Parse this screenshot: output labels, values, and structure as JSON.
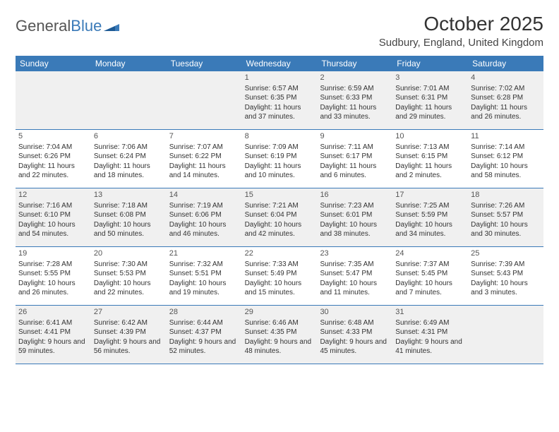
{
  "brand": {
    "part1": "General",
    "part2": "Blue"
  },
  "title": "October 2025",
  "location": "Sudbury, England, United Kingdom",
  "colors": {
    "header_bg": "#3a7ab8",
    "header_text": "#ffffff",
    "alt_row_bg": "#f0f0f0",
    "border": "#3a7ab8",
    "text": "#333333"
  },
  "day_names": [
    "Sunday",
    "Monday",
    "Tuesday",
    "Wednesday",
    "Thursday",
    "Friday",
    "Saturday"
  ],
  "weeks": [
    [
      {
        "day": "",
        "sunrise": "",
        "sunset": "",
        "daylight": ""
      },
      {
        "day": "",
        "sunrise": "",
        "sunset": "",
        "daylight": ""
      },
      {
        "day": "",
        "sunrise": "",
        "sunset": "",
        "daylight": ""
      },
      {
        "day": "1",
        "sunrise": "Sunrise: 6:57 AM",
        "sunset": "Sunset: 6:35 PM",
        "daylight": "Daylight: 11 hours and 37 minutes."
      },
      {
        "day": "2",
        "sunrise": "Sunrise: 6:59 AM",
        "sunset": "Sunset: 6:33 PM",
        "daylight": "Daylight: 11 hours and 33 minutes."
      },
      {
        "day": "3",
        "sunrise": "Sunrise: 7:01 AM",
        "sunset": "Sunset: 6:31 PM",
        "daylight": "Daylight: 11 hours and 29 minutes."
      },
      {
        "day": "4",
        "sunrise": "Sunrise: 7:02 AM",
        "sunset": "Sunset: 6:28 PM",
        "daylight": "Daylight: 11 hours and 26 minutes."
      }
    ],
    [
      {
        "day": "5",
        "sunrise": "Sunrise: 7:04 AM",
        "sunset": "Sunset: 6:26 PM",
        "daylight": "Daylight: 11 hours and 22 minutes."
      },
      {
        "day": "6",
        "sunrise": "Sunrise: 7:06 AM",
        "sunset": "Sunset: 6:24 PM",
        "daylight": "Daylight: 11 hours and 18 minutes."
      },
      {
        "day": "7",
        "sunrise": "Sunrise: 7:07 AM",
        "sunset": "Sunset: 6:22 PM",
        "daylight": "Daylight: 11 hours and 14 minutes."
      },
      {
        "day": "8",
        "sunrise": "Sunrise: 7:09 AM",
        "sunset": "Sunset: 6:19 PM",
        "daylight": "Daylight: 11 hours and 10 minutes."
      },
      {
        "day": "9",
        "sunrise": "Sunrise: 7:11 AM",
        "sunset": "Sunset: 6:17 PM",
        "daylight": "Daylight: 11 hours and 6 minutes."
      },
      {
        "day": "10",
        "sunrise": "Sunrise: 7:13 AM",
        "sunset": "Sunset: 6:15 PM",
        "daylight": "Daylight: 11 hours and 2 minutes."
      },
      {
        "day": "11",
        "sunrise": "Sunrise: 7:14 AM",
        "sunset": "Sunset: 6:12 PM",
        "daylight": "Daylight: 10 hours and 58 minutes."
      }
    ],
    [
      {
        "day": "12",
        "sunrise": "Sunrise: 7:16 AM",
        "sunset": "Sunset: 6:10 PM",
        "daylight": "Daylight: 10 hours and 54 minutes."
      },
      {
        "day": "13",
        "sunrise": "Sunrise: 7:18 AM",
        "sunset": "Sunset: 6:08 PM",
        "daylight": "Daylight: 10 hours and 50 minutes."
      },
      {
        "day": "14",
        "sunrise": "Sunrise: 7:19 AM",
        "sunset": "Sunset: 6:06 PM",
        "daylight": "Daylight: 10 hours and 46 minutes."
      },
      {
        "day": "15",
        "sunrise": "Sunrise: 7:21 AM",
        "sunset": "Sunset: 6:04 PM",
        "daylight": "Daylight: 10 hours and 42 minutes."
      },
      {
        "day": "16",
        "sunrise": "Sunrise: 7:23 AM",
        "sunset": "Sunset: 6:01 PM",
        "daylight": "Daylight: 10 hours and 38 minutes."
      },
      {
        "day": "17",
        "sunrise": "Sunrise: 7:25 AM",
        "sunset": "Sunset: 5:59 PM",
        "daylight": "Daylight: 10 hours and 34 minutes."
      },
      {
        "day": "18",
        "sunrise": "Sunrise: 7:26 AM",
        "sunset": "Sunset: 5:57 PM",
        "daylight": "Daylight: 10 hours and 30 minutes."
      }
    ],
    [
      {
        "day": "19",
        "sunrise": "Sunrise: 7:28 AM",
        "sunset": "Sunset: 5:55 PM",
        "daylight": "Daylight: 10 hours and 26 minutes."
      },
      {
        "day": "20",
        "sunrise": "Sunrise: 7:30 AM",
        "sunset": "Sunset: 5:53 PM",
        "daylight": "Daylight: 10 hours and 22 minutes."
      },
      {
        "day": "21",
        "sunrise": "Sunrise: 7:32 AM",
        "sunset": "Sunset: 5:51 PM",
        "daylight": "Daylight: 10 hours and 19 minutes."
      },
      {
        "day": "22",
        "sunrise": "Sunrise: 7:33 AM",
        "sunset": "Sunset: 5:49 PM",
        "daylight": "Daylight: 10 hours and 15 minutes."
      },
      {
        "day": "23",
        "sunrise": "Sunrise: 7:35 AM",
        "sunset": "Sunset: 5:47 PM",
        "daylight": "Daylight: 10 hours and 11 minutes."
      },
      {
        "day": "24",
        "sunrise": "Sunrise: 7:37 AM",
        "sunset": "Sunset: 5:45 PM",
        "daylight": "Daylight: 10 hours and 7 minutes."
      },
      {
        "day": "25",
        "sunrise": "Sunrise: 7:39 AM",
        "sunset": "Sunset: 5:43 PM",
        "daylight": "Daylight: 10 hours and 3 minutes."
      }
    ],
    [
      {
        "day": "26",
        "sunrise": "Sunrise: 6:41 AM",
        "sunset": "Sunset: 4:41 PM",
        "daylight": "Daylight: 9 hours and 59 minutes."
      },
      {
        "day": "27",
        "sunrise": "Sunrise: 6:42 AM",
        "sunset": "Sunset: 4:39 PM",
        "daylight": "Daylight: 9 hours and 56 minutes."
      },
      {
        "day": "28",
        "sunrise": "Sunrise: 6:44 AM",
        "sunset": "Sunset: 4:37 PM",
        "daylight": "Daylight: 9 hours and 52 minutes."
      },
      {
        "day": "29",
        "sunrise": "Sunrise: 6:46 AM",
        "sunset": "Sunset: 4:35 PM",
        "daylight": "Daylight: 9 hours and 48 minutes."
      },
      {
        "day": "30",
        "sunrise": "Sunrise: 6:48 AM",
        "sunset": "Sunset: 4:33 PM",
        "daylight": "Daylight: 9 hours and 45 minutes."
      },
      {
        "day": "31",
        "sunrise": "Sunrise: 6:49 AM",
        "sunset": "Sunset: 4:31 PM",
        "daylight": "Daylight: 9 hours and 41 minutes."
      },
      {
        "day": "",
        "sunrise": "",
        "sunset": "",
        "daylight": ""
      }
    ]
  ]
}
